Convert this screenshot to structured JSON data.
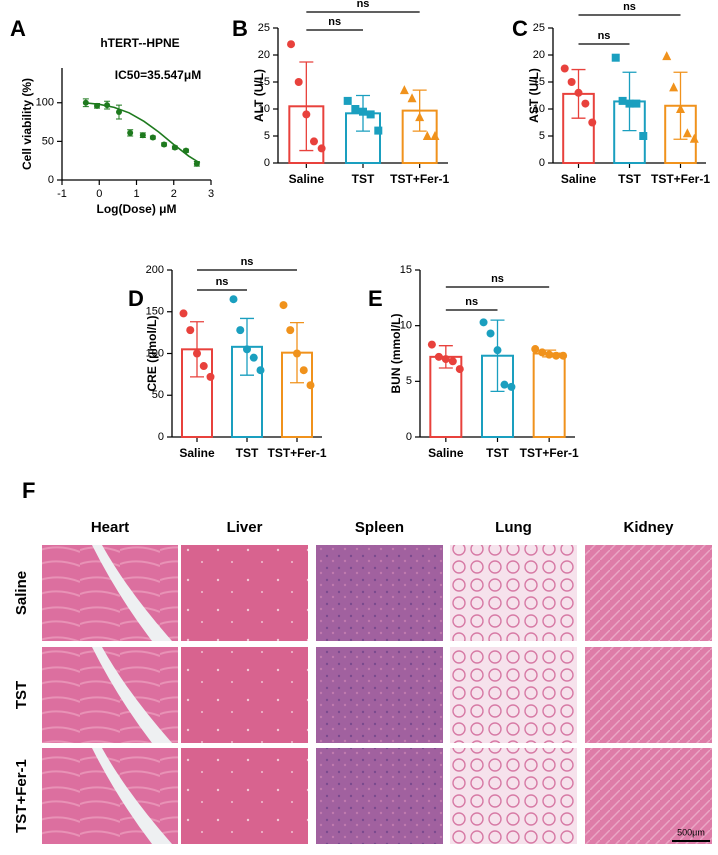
{
  "chart_data": [
    {
      "type": "scatter",
      "panel": "A",
      "title": "hTERT--HPNE",
      "annotation": "IC50=35.547μM",
      "xlabel": "Log(Dose) μM",
      "ylabel": "Cell viability (%)",
      "x": [
        -0.36,
        -0.06,
        0.21,
        0.53,
        0.83,
        1.17,
        1.44,
        1.74,
        2.03,
        2.33,
        2.62
      ],
      "values": [
        100,
        96,
        97,
        88,
        61,
        58,
        55,
        46,
        42,
        38,
        21
      ],
      "errors": [
        5,
        3,
        5,
        9,
        4,
        3,
        2,
        2,
        2,
        2,
        3
      ],
      "fit": {
        "x": [
          -0.4,
          0,
          0.4,
          0.8,
          1.2,
          1.6,
          2.0,
          2.4,
          2.7
        ],
        "values": [
          100,
          98,
          94,
          87,
          76,
          62,
          46,
          31,
          22
        ]
      },
      "color": "#1e7a1e",
      "xlim": [
        -1,
        3
      ],
      "xticks": [
        -1,
        0,
        1,
        2,
        3
      ],
      "ylim": [
        0,
        145
      ],
      "yticks": [
        0,
        50,
        100
      ]
    },
    {
      "type": "bar",
      "panel": "B",
      "ylabel": "ALT (U/L)",
      "categories": [
        "Saline",
        "TST",
        "TST+Fer-1"
      ],
      "values": [
        10.5,
        9.2,
        9.7
      ],
      "errors": [
        8.2,
        3.3,
        3.8
      ],
      "points": [
        [
          22,
          15,
          9,
          4,
          2.7
        ],
        [
          11.5,
          10,
          9.5,
          9,
          6
        ],
        [
          13.5,
          12,
          8.5,
          5,
          5
        ]
      ],
      "colors": [
        "#e8413c",
        "#1a9fbf",
        "#f0921c"
      ],
      "markers": [
        "circle",
        "square",
        "triangle"
      ],
      "ylim": [
        0,
        25
      ],
      "yticks": [
        0,
        5,
        10,
        15,
        20,
        25
      ],
      "comparisons": [
        {
          "text": "ns",
          "between": [
            "Saline",
            "TST"
          ]
        },
        {
          "text": "ns",
          "between": [
            "Saline",
            "TST+Fer-1"
          ]
        }
      ]
    },
    {
      "type": "bar",
      "panel": "C",
      "ylabel": "AST (U/L)",
      "categories": [
        "Saline",
        "TST",
        "TST+Fer-1"
      ],
      "values": [
        12.8,
        11.4,
        10.6
      ],
      "errors": [
        4.5,
        5.4,
        6.2
      ],
      "points": [
        [
          17.5,
          15,
          13,
          11,
          7.5
        ],
        [
          19.5,
          11.5,
          11,
          11,
          5
        ],
        [
          19.8,
          14,
          10,
          5.5,
          4.5
        ]
      ],
      "colors": [
        "#e8413c",
        "#1a9fbf",
        "#f0921c"
      ],
      "markers": [
        "circle",
        "square",
        "triangle"
      ],
      "ylim": [
        0,
        25
      ],
      "yticks": [
        0,
        5,
        10,
        15,
        20,
        25
      ],
      "comparisons": [
        {
          "text": "ns",
          "between": [
            "Saline",
            "TST"
          ]
        },
        {
          "text": "ns",
          "between": [
            "Saline",
            "TST+Fer-1"
          ]
        }
      ]
    },
    {
      "type": "bar",
      "panel": "D",
      "ylabel": "CRE (μmol/L)",
      "categories": [
        "Saline",
        "TST",
        "TST+Fer-1"
      ],
      "values": [
        105,
        108,
        101
      ],
      "errors": [
        33,
        34,
        36
      ],
      "points": [
        [
          148,
          128,
          100,
          85,
          72
        ],
        [
          165,
          128,
          105,
          95,
          80
        ],
        [
          158,
          128,
          100,
          80,
          62
        ]
      ],
      "colors": [
        "#e8413c",
        "#1a9fbf",
        "#f0921c"
      ],
      "markers": [
        "circle",
        "circle",
        "circle"
      ],
      "ylim": [
        0,
        200
      ],
      "yticks": [
        0,
        50,
        100,
        150,
        200
      ],
      "comparisons": [
        {
          "text": "ns",
          "between": [
            "Saline",
            "TST"
          ]
        },
        {
          "text": "ns",
          "between": [
            "Saline",
            "TST+Fer-1"
          ]
        }
      ]
    },
    {
      "type": "bar",
      "panel": "E",
      "ylabel": "BUN (mmol/L)",
      "categories": [
        "Saline",
        "TST",
        "TST+Fer-1"
      ],
      "values": [
        7.2,
        7.3,
        7.5
      ],
      "errors": [
        1.0,
        3.2,
        0.3
      ],
      "points": [
        [
          8.3,
          7.2,
          7,
          6.8,
          6.1
        ],
        [
          10.3,
          9.3,
          7.8,
          4.7,
          4.5
        ],
        [
          7.9,
          7.6,
          7.4,
          7.3,
          7.3
        ]
      ],
      "colors": [
        "#e8413c",
        "#1a9fbf",
        "#f0921c"
      ],
      "markers": [
        "circle",
        "circle",
        "circle"
      ],
      "ylim": [
        0,
        15
      ],
      "yticks": [
        0,
        5,
        10,
        15
      ],
      "comparisons": [
        {
          "text": "ns",
          "between": [
            "Saline",
            "TST"
          ]
        },
        {
          "text": "ns",
          "between": [
            "Saline",
            "TST+Fer-1"
          ]
        }
      ]
    }
  ],
  "histology": {
    "panel": "F",
    "columns": [
      "Heart",
      "Liver",
      "Spleen",
      "Lung",
      "Kidney"
    ],
    "rows": [
      "Saline",
      "TST",
      "TST+Fer-1"
    ],
    "scale_bar": "500μm"
  }
}
